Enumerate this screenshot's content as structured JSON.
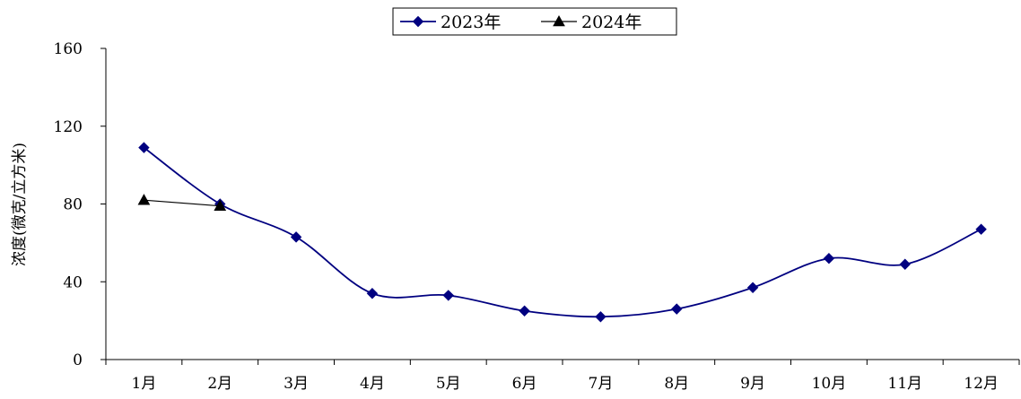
{
  "chart_data": {
    "type": "line",
    "title": "",
    "xlabel": "",
    "ylabel": "浓度(微克/立方米)",
    "categories": [
      "1月",
      "2月",
      "3月",
      "4月",
      "5月",
      "6月",
      "7月",
      "8月",
      "9月",
      "10月",
      "11月",
      "12月"
    ],
    "ylim": [
      0,
      160
    ],
    "yticks": [
      0,
      40,
      80,
      120,
      160
    ],
    "legend_position": "top-center",
    "grid": false,
    "smooth": true,
    "series": [
      {
        "name": "2023年",
        "marker": "diamond",
        "color": "#000080",
        "values": [
          109,
          80,
          63,
          34,
          33,
          25,
          22,
          26,
          37,
          52,
          49,
          67
        ]
      },
      {
        "name": "2024年",
        "marker": "triangle",
        "color": "#000000",
        "values": [
          82,
          79,
          null,
          null,
          null,
          null,
          null,
          null,
          null,
          null,
          null,
          null
        ]
      }
    ]
  }
}
